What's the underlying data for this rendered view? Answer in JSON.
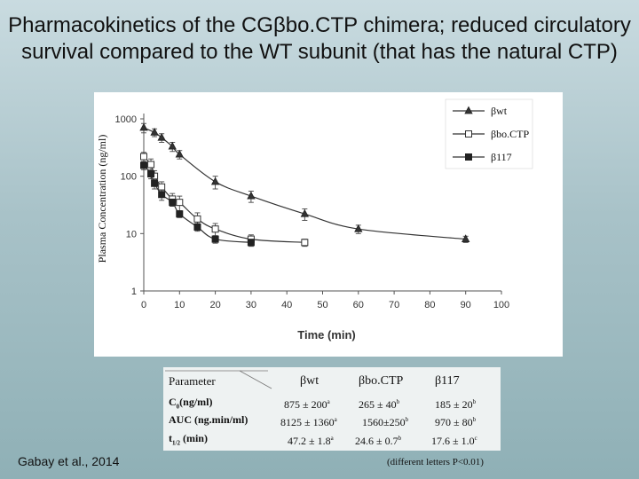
{
  "title_line1": "Pharmacokinetics of the CGβbo.CTP chimera; reduced circulatory",
  "title_line2": "survival compared to the WT subunit (that has the natural CTP)",
  "chart_data": {
    "type": "line",
    "xlabel": "Time (min)",
    "ylabel": "Plasma Concentration (ng/ml)",
    "xlim": [
      0,
      100
    ],
    "ylim": [
      1,
      1000
    ],
    "yscale": "log",
    "xticks": [
      "0",
      "10",
      "20",
      "30",
      "40",
      "50",
      "60",
      "70",
      "80",
      "90",
      "100"
    ],
    "yticks": [
      "1",
      "10",
      "100",
      "1000"
    ],
    "legend_position": "top-right",
    "series": [
      {
        "name": "βwt",
        "marker": "triangle",
        "x": [
          0,
          3,
          5,
          8,
          10,
          20,
          30,
          45,
          60,
          90
        ],
        "y": [
          700,
          580,
          470,
          330,
          240,
          80,
          45,
          22,
          12,
          8
        ],
        "err": [
          130,
          90,
          80,
          60,
          40,
          20,
          10,
          5,
          2,
          1
        ]
      },
      {
        "name": "βbo.CTP",
        "marker": "open-square",
        "x": [
          0,
          2,
          3,
          5,
          8,
          10,
          15,
          20,
          30,
          45
        ],
        "y": [
          220,
          160,
          100,
          65,
          40,
          35,
          18,
          12,
          8,
          7
        ],
        "err": [
          40,
          40,
          25,
          15,
          10,
          10,
          5,
          3,
          1.5,
          1
        ]
      },
      {
        "name": "β117",
        "marker": "filled-square",
        "x": [
          0,
          2,
          3,
          5,
          8,
          10,
          15,
          20,
          30
        ],
        "y": [
          155,
          110,
          75,
          48,
          35,
          22,
          13,
          8,
          7
        ],
        "err": [
          25,
          20,
          15,
          10,
          5,
          3,
          2,
          1.2,
          1
        ]
      }
    ]
  },
  "table": {
    "col_headers": [
      "Parameter",
      "βwt",
      "βbo.CTP",
      "β117"
    ],
    "rows": [
      {
        "param": "C",
        "param_sub": "0",
        "param_rest": "(ng/ml)",
        "wt": "875 ± 200",
        "wt_sup": "a",
        "bo": "265 ± 40",
        "bo_sup": "b",
        "b117": "185 ± 20",
        "b117_sup": "b"
      },
      {
        "param": "AUC (ng.min/ml)",
        "param_sub": "",
        "param_rest": "",
        "wt": "8125 ± 1360",
        "wt_sup": "a",
        "bo": "1560±250",
        "bo_sup": "b",
        "b117": "970 ± 80",
        "b117_sup": "b"
      },
      {
        "param": "t",
        "param_sub": "1/2",
        "param_rest": " (min)",
        "wt": "47.2 ± 1.8",
        "wt_sup": "a",
        "bo": "24.6 ± 0.7",
        "bo_sup": "b",
        "b117": "17.6 ± 1.0",
        "b117_sup": "c"
      }
    ]
  },
  "citation": "Gabay et al., 2014",
  "footnote": "(different letters P<0.01)"
}
